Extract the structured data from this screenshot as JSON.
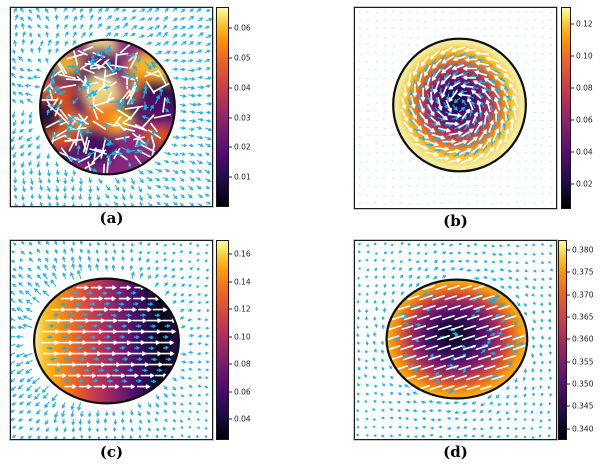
{
  "figure": {
    "background": "#ffffff",
    "colors": {
      "outer_arrows": "#1fb2e6",
      "outer_dots": "#9bdcf2",
      "inner_arrows_cyan": "#17b3e8",
      "inner_arrows_white": "#ffffff",
      "shape_outline": "#0e0e0e",
      "plot_border": "#1c1c1c",
      "tick_text": "#1a1a1a",
      "caption_text": "#000000"
    }
  },
  "chart_data": {
    "type": "heatmap",
    "subtype": "2x2 panel figure: scalar concentration heatmaps (inferno colormap) inside active droplets with overlaid quiver vector fields (white director/flow arrows inside, cyan flow arrows outside)",
    "colormap": "inferno",
    "colormap_stops": [
      [
        0,
        "#000004"
      ],
      [
        0.12,
        "#1b0c41"
      ],
      [
        0.25,
        "#4a0c6b"
      ],
      [
        0.38,
        "#781c6d"
      ],
      [
        0.5,
        "#a52c60"
      ],
      [
        0.62,
        "#cf4446"
      ],
      [
        0.75,
        "#ed6925"
      ],
      [
        0.85,
        "#fb9b06"
      ],
      [
        0.93,
        "#f7d03c"
      ],
      [
        1,
        "#fcffa4"
      ]
    ],
    "panels": [
      {
        "id": "a",
        "caption": "(a)",
        "description": "turbulent droplet: disordered patchy field inside circle, random white nematic segments, cyan flow arrows inside and outside flowing right/down",
        "shape": {
          "kind": "circle",
          "cx": 0.48,
          "cy": 0.5,
          "r": 0.335
        },
        "fill": {
          "type": "texture",
          "base": "#87297f",
          "blob_colors": [
            "#150b3c",
            "#f57d15",
            "#fbc227",
            "#53106a",
            "#fde98a",
            "#3b0f63",
            "#e4560f",
            "#1d0a45"
          ]
        },
        "inner_field": "nematic-random",
        "outer_field": "outflow-right-down",
        "cyan_on_top": true,
        "colorbar": {
          "vmin": 0.0,
          "vmax": 0.0672,
          "ticks": [
            0.06,
            0.05,
            0.04,
            0.03,
            0.02,
            0.01
          ],
          "tick_labels": [
            "0.06",
            "0.05",
            "0.04",
            "0.03",
            "0.02",
            "0.01"
          ]
        }
      },
      {
        "id": "b",
        "caption": "(b)",
        "description": "vortex droplet: radially layered field, dark core to yellow rim, white and cyan arrows spiralling around the center, faint cyan dot grid outside",
        "shape": {
          "kind": "circle",
          "cx": 0.52,
          "cy": 0.485,
          "r": 0.33
        },
        "fill": {
          "type": "radial",
          "stops": [
            [
              0,
              "#0b0724"
            ],
            [
              0.18,
              "#340963"
            ],
            [
              0.34,
              "#6a176e"
            ],
            [
              0.5,
              "#b63a52"
            ],
            [
              0.64,
              "#ee7b17"
            ],
            [
              0.78,
              "#f9c42e"
            ],
            [
              0.9,
              "#f2ec9c"
            ],
            [
              1,
              "#efeb9e"
            ]
          ]
        },
        "inner_field": "vortex",
        "outer_field": "dot-grid",
        "cyan_on_top": false,
        "colorbar": {
          "vmin": 0.004,
          "vmax": 0.131,
          "ticks": [
            0.12,
            0.1,
            0.08,
            0.06,
            0.04,
            0.02
          ],
          "tick_labels": [
            "0.12",
            "0.10",
            "0.08",
            "0.06",
            "0.04",
            "0.02"
          ]
        }
      },
      {
        "id": "c",
        "caption": "(c)",
        "description": "polar moving droplet: horizontal gradient from bright yellow (left) to near black (right), white arrows pointing right in rows, cyan arrows fanning outward strongest on the left",
        "shape": {
          "kind": "ellipse",
          "cx": 0.475,
          "cy": 0.505,
          "rx": 0.36,
          "ry": 0.315
        },
        "fill": {
          "type": "linear-x",
          "stops": [
            [
              0,
              "#f8f2a0"
            ],
            [
              0.07,
              "#fbc126"
            ],
            [
              0.16,
              "#f8990c"
            ],
            [
              0.27,
              "#ed6925"
            ],
            [
              0.38,
              "#cf4446"
            ],
            [
              0.5,
              "#a52c60"
            ],
            [
              0.6,
              "#781c6d"
            ],
            [
              0.7,
              "#4a0c6b"
            ],
            [
              0.8,
              "#1e0c45"
            ],
            [
              0.88,
              "#07040f"
            ],
            [
              1,
              "#2a0a4e"
            ]
          ]
        },
        "inner_field": "rows-right",
        "outer_field": "dipole-left",
        "cyan_on_top": false,
        "colorbar": {
          "vmin": 0.025,
          "vmax": 0.1705,
          "ticks": [
            0.16,
            0.14,
            0.12,
            0.1,
            0.08,
            0.06,
            0.04
          ],
          "tick_labels": [
            "0.16",
            "0.14",
            "0.12",
            "0.10",
            "0.08",
            "0.06",
            "0.04"
          ]
        }
      },
      {
        "id": "d",
        "caption": "(d)",
        "description": "rotating droplet: dark core ringed by purple, red and orange with yellow rim patches, tilted white dashes inside, dense cyan arrows circulating clockwise outside",
        "shape": {
          "kind": "ellipse",
          "cx": 0.507,
          "cy": 0.495,
          "rx": 0.35,
          "ry": 0.3
        },
        "fill": {
          "type": "radial",
          "stops": [
            [
              0,
              "#05030f"
            ],
            [
              0.22,
              "#250a4c"
            ],
            [
              0.42,
              "#5c126e"
            ],
            [
              0.6,
              "#a42c60"
            ],
            [
              0.75,
              "#e05b29"
            ],
            [
              0.88,
              "#f8960b"
            ],
            [
              1,
              "#fbc724"
            ]
          ]
        },
        "inner_field": "tilted-dashes",
        "outer_field": "swirl-cw",
        "cyan_on_top": false,
        "colorbar": {
          "vmin": 0.3375,
          "vmax": 0.3822,
          "ticks": [
            0.38,
            0.375,
            0.37,
            0.365,
            0.36,
            0.355,
            0.35,
            0.345,
            0.34
          ],
          "tick_labels": [
            "0.380",
            "0.375",
            "0.370",
            "0.365",
            "0.360",
            "0.355",
            "0.350",
            "0.345",
            "0.340"
          ]
        }
      }
    ]
  }
}
